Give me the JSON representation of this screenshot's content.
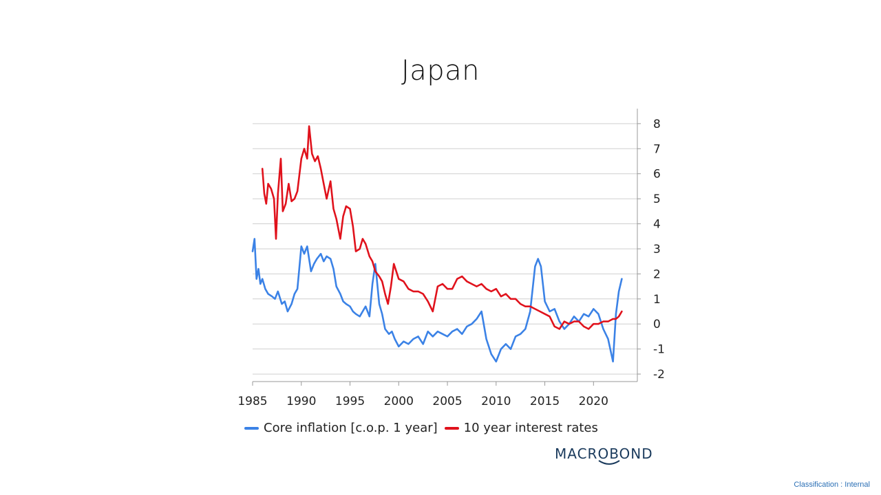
{
  "page": {
    "title": "Japan",
    "brand": "MACROBOND",
    "classification": "Classification : Internal"
  },
  "colors": {
    "core_inflation": "#3b82e6",
    "interest_rates": "#e0121c",
    "grid": "#cfcfcf",
    "axis": "#999999"
  },
  "chart_data": {
    "type": "line",
    "title": "Japan",
    "xlabel": "",
    "ylabel": "",
    "xlim": [
      1985,
      2024.5
    ],
    "ylim": [
      -2.3,
      8.6
    ],
    "x_ticks": [
      1985,
      1990,
      1995,
      2000,
      2005,
      2010,
      2015,
      2020
    ],
    "y_ticks": [
      8,
      7,
      6,
      5,
      4,
      3,
      2,
      1,
      0,
      -1,
      -2
    ],
    "y_axis_side": "right",
    "grid": "horizontal",
    "legend_position": "bottom",
    "series": [
      {
        "name": "Core inflation [c.o.p. 1 year]",
        "color": "#3b82e6",
        "x": [
          1985.0,
          1985.2,
          1985.4,
          1985.6,
          1985.8,
          1986.0,
          1986.3,
          1986.6,
          1987.0,
          1987.3,
          1987.6,
          1988.0,
          1988.3,
          1988.6,
          1989.0,
          1989.3,
          1989.6,
          1990.0,
          1990.3,
          1990.6,
          1991.0,
          1991.3,
          1991.6,
          1992.0,
          1992.3,
          1992.6,
          1993.0,
          1993.3,
          1993.6,
          1994.0,
          1994.3,
          1994.6,
          1995.0,
          1995.3,
          1995.6,
          1996.0,
          1996.3,
          1996.6,
          1997.0,
          1997.3,
          1997.6,
          1998.0,
          1998.3,
          1998.6,
          1999.0,
          1999.3,
          1999.6,
          2000.0,
          2000.5,
          2001.0,
          2001.5,
          2002.0,
          2002.5,
          2003.0,
          2003.5,
          2004.0,
          2004.5,
          2005.0,
          2005.5,
          2006.0,
          2006.5,
          2007.0,
          2007.5,
          2008.0,
          2008.5,
          2009.0,
          2009.5,
          2010.0,
          2010.5,
          2011.0,
          2011.5,
          2012.0,
          2012.5,
          2013.0,
          2013.5,
          2014.0,
          2014.3,
          2014.6,
          2015.0,
          2015.5,
          2016.0,
          2016.5,
          2017.0,
          2017.5,
          2018.0,
          2018.5,
          2019.0,
          2019.5,
          2020.0,
          2020.5,
          2021.0,
          2021.5,
          2022.0,
          2022.3,
          2022.6,
          2022.9
        ],
        "values": [
          2.9,
          3.4,
          1.8,
          2.2,
          1.6,
          1.8,
          1.4,
          1.2,
          1.1,
          1.0,
          1.3,
          0.8,
          0.9,
          0.5,
          0.8,
          1.2,
          1.4,
          3.1,
          2.8,
          3.1,
          2.1,
          2.4,
          2.6,
          2.8,
          2.5,
          2.7,
          2.6,
          2.2,
          1.5,
          1.2,
          0.9,
          0.8,
          0.7,
          0.5,
          0.4,
          0.3,
          0.5,
          0.7,
          0.3,
          1.6,
          2.4,
          0.8,
          0.4,
          -0.2,
          -0.4,
          -0.3,
          -0.6,
          -0.9,
          -0.7,
          -0.8,
          -0.6,
          -0.5,
          -0.8,
          -0.3,
          -0.5,
          -0.3,
          -0.4,
          -0.5,
          -0.3,
          -0.2,
          -0.4,
          -0.1,
          0.0,
          0.2,
          0.5,
          -0.6,
          -1.2,
          -1.5,
          -1.0,
          -0.8,
          -1.0,
          -0.5,
          -0.4,
          -0.2,
          0.5,
          2.3,
          2.6,
          2.3,
          0.9,
          0.5,
          0.6,
          0.1,
          -0.2,
          0.0,
          0.3,
          0.1,
          0.4,
          0.3,
          0.6,
          0.4,
          -0.2,
          -0.6,
          -1.5,
          0.4,
          1.3,
          1.8
        ]
      },
      {
        "name": "10 year interest rates",
        "color": "#e0121c",
        "x": [
          1986.0,
          1986.2,
          1986.4,
          1986.6,
          1986.9,
          1987.2,
          1987.4,
          1987.6,
          1987.9,
          1988.1,
          1988.4,
          1988.7,
          1989.0,
          1989.3,
          1989.6,
          1990.0,
          1990.3,
          1990.6,
          1990.8,
          1991.1,
          1991.4,
          1991.7,
          1992.0,
          1992.3,
          1992.6,
          1993.0,
          1993.3,
          1993.6,
          1994.0,
          1994.3,
          1994.6,
          1995.0,
          1995.3,
          1995.6,
          1996.0,
          1996.3,
          1996.6,
          1997.0,
          1997.3,
          1997.6,
          1998.0,
          1998.3,
          1998.6,
          1998.9,
          1999.2,
          1999.5,
          2000.0,
          2000.5,
          2001.0,
          2001.5,
          2002.0,
          2002.5,
          2003.0,
          2003.5,
          2004.0,
          2004.5,
          2005.0,
          2005.5,
          2006.0,
          2006.5,
          2007.0,
          2007.5,
          2008.0,
          2008.5,
          2009.0,
          2009.5,
          2010.0,
          2010.5,
          2011.0,
          2011.5,
          2012.0,
          2012.5,
          2013.0,
          2013.5,
          2014.0,
          2014.5,
          2015.0,
          2015.5,
          2016.0,
          2016.5,
          2017.0,
          2017.5,
          2018.0,
          2018.5,
          2019.0,
          2019.5,
          2020.0,
          2020.5,
          2021.0,
          2021.5,
          2022.0,
          2022.3,
          2022.6,
          2022.9
        ],
        "values": [
          6.2,
          5.2,
          4.8,
          5.6,
          5.4,
          5.0,
          3.4,
          5.2,
          6.6,
          4.5,
          4.8,
          5.6,
          4.9,
          5.0,
          5.3,
          6.6,
          7.0,
          6.6,
          7.9,
          6.8,
          6.5,
          6.7,
          6.2,
          5.6,
          5.0,
          5.7,
          4.6,
          4.2,
          3.4,
          4.3,
          4.7,
          4.6,
          3.9,
          2.9,
          3.0,
          3.4,
          3.2,
          2.7,
          2.5,
          2.1,
          1.9,
          1.7,
          1.2,
          0.8,
          1.5,
          2.4,
          1.8,
          1.7,
          1.4,
          1.3,
          1.3,
          1.2,
          0.9,
          0.5,
          1.5,
          1.6,
          1.4,
          1.4,
          1.8,
          1.9,
          1.7,
          1.6,
          1.5,
          1.6,
          1.4,
          1.3,
          1.4,
          1.1,
          1.2,
          1.0,
          1.0,
          0.8,
          0.7,
          0.7,
          0.6,
          0.5,
          0.4,
          0.3,
          -0.1,
          -0.2,
          0.1,
          0.0,
          0.1,
          0.1,
          -0.1,
          -0.2,
          0.0,
          0.0,
          0.1,
          0.1,
          0.2,
          0.2,
          0.3,
          0.5
        ]
      }
    ]
  }
}
